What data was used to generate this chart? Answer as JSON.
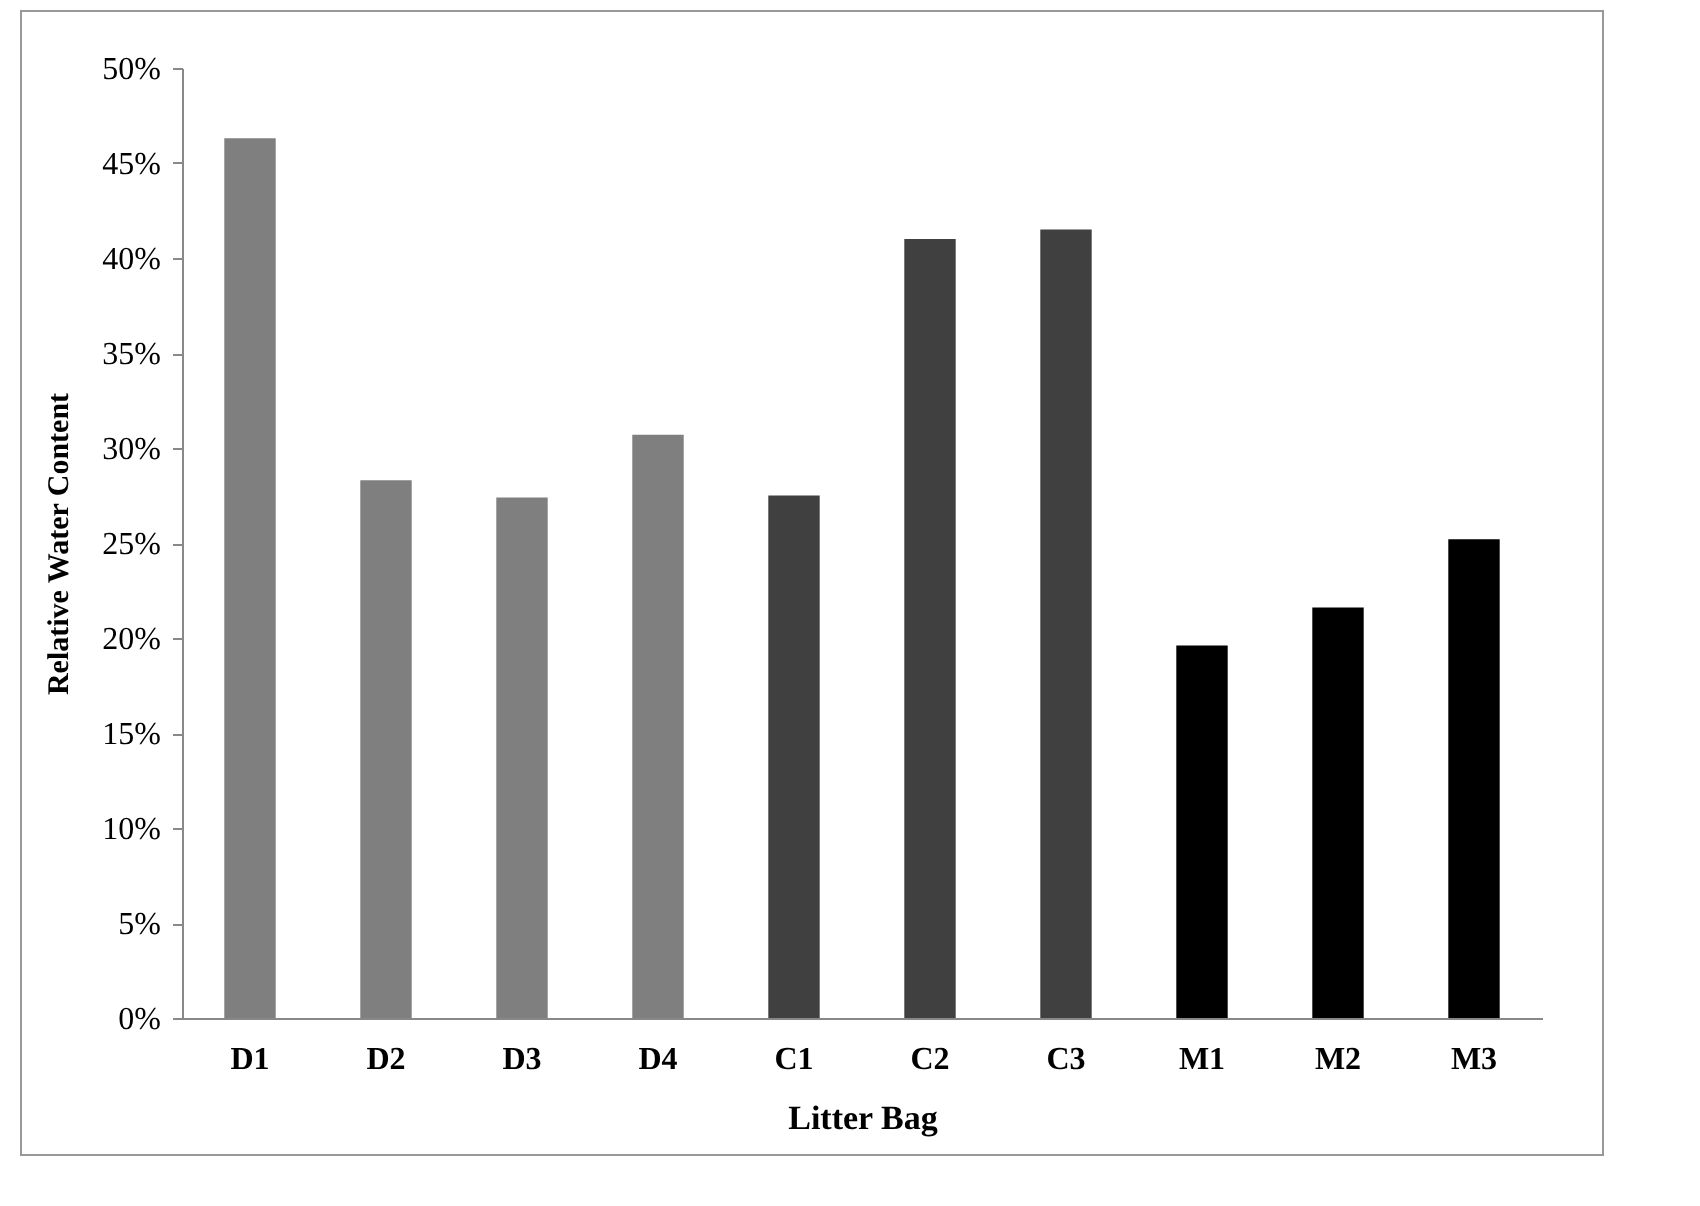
{
  "chart_data": {
    "type": "bar",
    "xlabel": "Litter Bag",
    "ylabel": "Relative Water Content",
    "categories": [
      "D1",
      "D2",
      "D3",
      "D4",
      "C1",
      "C2",
      "C3",
      "M1",
      "M2",
      "M3"
    ],
    "values": [
      46.3,
      28.3,
      27.4,
      30.7,
      27.5,
      41.0,
      41.5,
      19.6,
      21.6,
      25.2
    ],
    "colors": [
      "#7f7f7f",
      "#7f7f7f",
      "#7f7f7f",
      "#7f7f7f",
      "#404040",
      "#404040",
      "#404040",
      "#000000",
      "#000000",
      "#000000"
    ],
    "ylim": [
      0,
      50
    ],
    "yticks": [
      {
        "value": 0,
        "label": "0%"
      },
      {
        "value": 5,
        "label": "5%"
      },
      {
        "value": 10,
        "label": "10%"
      },
      {
        "value": 15,
        "label": "15%"
      },
      {
        "value": 20,
        "label": "20%"
      },
      {
        "value": 25,
        "label": "25%"
      },
      {
        "value": 30,
        "label": "30%"
      },
      {
        "value": 35,
        "label": "35%"
      },
      {
        "value": 40,
        "label": "40%"
      },
      {
        "value": 45,
        "label": "45%"
      },
      {
        "value": 50,
        "label": "50%"
      }
    ],
    "grid": false
  }
}
